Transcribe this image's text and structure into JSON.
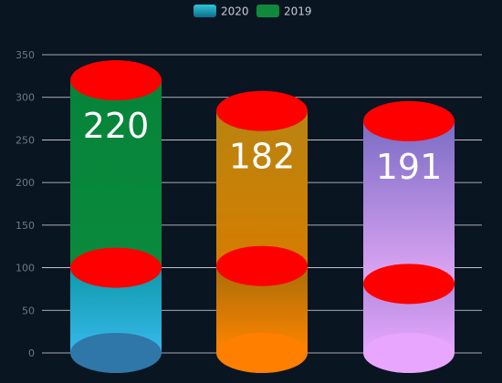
{
  "chart_data": {
    "type": "bar",
    "style": "stacked-cylinder",
    "categories": [
      "",
      "",
      ""
    ],
    "series": [
      {
        "name": "2020",
        "values": [
          100,
          102,
          81
        ]
      },
      {
        "name": "2019",
        "values": [
          220,
          182,
          191
        ]
      }
    ],
    "totals": [
      320,
      284,
      272
    ],
    "data_labels": [
      "220",
      "182",
      "191"
    ],
    "y_ticks": [
      "0",
      "50",
      "100",
      "150",
      "200",
      "250",
      "300",
      "350"
    ],
    "ylim": [
      0,
      350
    ],
    "grid": true,
    "legend_position": "top-center",
    "colors": {
      "background": "#0a1522",
      "grid": "#ffffff",
      "cap": "#ff0000",
      "legend_2020": "#2ec7d8",
      "legend_2019": "#0f8a3a",
      "bar1_bottom_top": "#0e9aa8",
      "bar1_bottom_base": "#36b8ec",
      "bar1_top": "#06843a",
      "bar1_base_cap": "#2e77a8",
      "bar2_top": "#b88410",
      "bar2_mid": "#d67d00",
      "bar2_low": "#a86d08",
      "bar2_base_cap": "#ff7f00",
      "bar3_top": "#7a6cc4",
      "bar3_mid": "#e0a6f5",
      "bar3_low": "#b58ede",
      "bar3_base_cap": "#e8a6ff"
    }
  }
}
